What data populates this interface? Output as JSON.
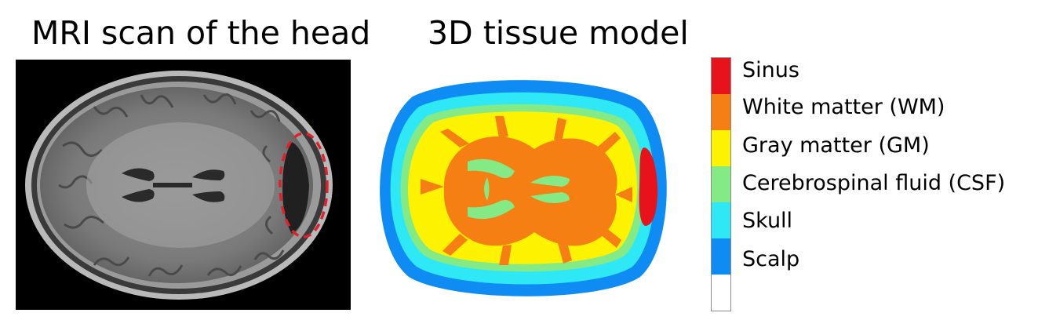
{
  "titles": {
    "left": "MRI scan of the head",
    "right": "3D tissue model"
  },
  "legend": [
    {
      "label": "Sinus",
      "color": "#e8121c"
    },
    {
      "label": "White matter (WM)",
      "color": "#f57f12"
    },
    {
      "label": "Gray matter (GM)",
      "color": "#fdf200"
    },
    {
      "label": "Cerebrospinal fluid (CSF)",
      "color": "#83ea86"
    },
    {
      "label": "Skull",
      "color": "#2ee9f5"
    },
    {
      "label": "Scalp",
      "color": "#0f8cf3"
    },
    {
      "label": "",
      "color": "#ffffff"
    }
  ],
  "colors": {
    "mri_background": "#000000",
    "annotation_ellipse": "#e0202a"
  }
}
